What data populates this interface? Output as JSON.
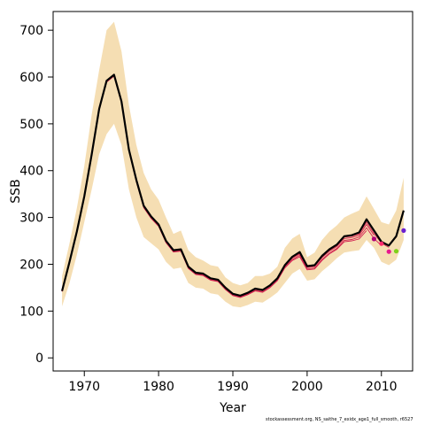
{
  "chart_data": {
    "type": "line",
    "title": "",
    "xlabel": "Year",
    "ylabel": "SSB",
    "xlim": [
      1965.8,
      2014.2
    ],
    "ylim": [
      -28,
      740
    ],
    "x_ticks": [
      1970,
      1980,
      1990,
      2000,
      2010
    ],
    "y_ticks": [
      0,
      100,
      200,
      300,
      400,
      500,
      600,
      700
    ],
    "grid": false,
    "footnote": "stockassessment.org, NS_saithe_7_exidx_age1_full_smooth, r6527",
    "colors": {
      "band": "#f5deb3",
      "main_line": "#000000",
      "retro_lines": "#d2224f",
      "retro_dark": "#5a1a1a"
    },
    "band": {
      "x": [
        1967,
        1968,
        1969,
        1970,
        1971,
        1972,
        1973,
        1974,
        1975,
        1976,
        1977,
        1978,
        1979,
        1980,
        1981,
        1982,
        1983,
        1984,
        1985,
        1986,
        1987,
        1988,
        1989,
        1990,
        1991,
        1992,
        1993,
        1994,
        1995,
        1996,
        1997,
        1998,
        1999,
        2000,
        2001,
        2002,
        2003,
        2004,
        2005,
        2006,
        2007,
        2008,
        2009,
        2010,
        2011,
        2012,
        2013
      ],
      "lower": [
        110,
        160,
        220,
        290,
        360,
        435,
        478,
        500,
        455,
        360,
        300,
        258,
        245,
        232,
        205,
        190,
        193,
        160,
        150,
        148,
        138,
        135,
        120,
        110,
        108,
        113,
        120,
        118,
        128,
        140,
        160,
        180,
        190,
        165,
        168,
        185,
        198,
        213,
        225,
        228,
        230,
        252,
        235,
        205,
        198,
        210,
        252
      ],
      "upper": [
        175,
        245,
        320,
        410,
        520,
        615,
        700,
        718,
        655,
        540,
        455,
        395,
        360,
        338,
        300,
        265,
        272,
        230,
        215,
        208,
        198,
        195,
        172,
        160,
        155,
        160,
        175,
        175,
        180,
        195,
        235,
        255,
        265,
        215,
        225,
        252,
        270,
        283,
        300,
        308,
        315,
        345,
        318,
        290,
        285,
        315,
        385
      ]
    },
    "series": [
      {
        "name": "",
        "role": "main",
        "x": [
          1967,
          1968,
          1969,
          1970,
          1971,
          1972,
          1973,
          1974,
          1975,
          1976,
          1977,
          1978,
          1979,
          1980,
          1981,
          1982,
          1983,
          1984,
          1985,
          1986,
          1987,
          1988,
          1989,
          1990,
          1991,
          1992,
          1993,
          1994,
          1995,
          1996,
          1997,
          1998,
          1999,
          2000,
          2001,
          2002,
          2003,
          2004,
          2005,
          2006,
          2007,
          2008,
          2009,
          2010,
          2011,
          2012,
          2013
        ],
        "values": [
          143,
          205,
          270,
          345,
          435,
          532,
          592,
          605,
          548,
          445,
          380,
          325,
          302,
          285,
          250,
          230,
          232,
          195,
          182,
          180,
          170,
          167,
          150,
          137,
          133,
          139,
          148,
          145,
          155,
          170,
          198,
          216,
          226,
          196,
          198,
          218,
          232,
          242,
          260,
          262,
          268,
          296,
          272,
          248,
          240,
          260,
          315
        ]
      },
      {
        "name": "",
        "role": "retro",
        "x": [
          1967,
          1968,
          1969,
          1970,
          1971,
          1972,
          1973,
          1974,
          1975,
          1976,
          1977,
          1978,
          1979,
          1980,
          1981,
          1982,
          1983,
          1984,
          1985,
          1986,
          1987,
          1988,
          1989,
          1990,
          1991,
          1992,
          1993,
          1994,
          1995,
          1996,
          1997,
          1998,
          1999,
          2000,
          2001,
          2002,
          2003,
          2004,
          2005,
          2006,
          2007,
          2008,
          2009
        ],
        "values": [
          142,
          204,
          268,
          343,
          433,
          530,
          590,
          603,
          546,
          443,
          378,
          323,
          300,
          283,
          248,
          228,
          230,
          193,
          180,
          178,
          168,
          165,
          148,
          135,
          131,
          137,
          146,
          143,
          153,
          168,
          196,
          213,
          222,
          193,
          195,
          214,
          228,
          238,
          255,
          257,
          262,
          285,
          262
        ],
        "end_point": 244,
        "end_color": "#ff2a6d"
      },
      {
        "name": "",
        "role": "retro",
        "x": [
          1967,
          1968,
          1969,
          1970,
          1971,
          1972,
          1973,
          1974,
          1975,
          1976,
          1977,
          1978,
          1979,
          1980,
          1981,
          1982,
          1983,
          1984,
          1985,
          1986,
          1987,
          1988,
          1989,
          1990,
          1991,
          1992,
          1993,
          1994,
          1995,
          1996,
          1997,
          1998,
          1999,
          2000,
          2001,
          2002,
          2003,
          2004,
          2005,
          2006,
          2007,
          2008
        ],
        "values": [
          142,
          204,
          268,
          343,
          432,
          529,
          589,
          602,
          545,
          442,
          376,
          321,
          298,
          281,
          246,
          226,
          228,
          191,
          178,
          176,
          166,
          163,
          146,
          133,
          129,
          135,
          143,
          140,
          150,
          165,
          192,
          208,
          216,
          188,
          190,
          208,
          222,
          232,
          248,
          250,
          254,
          272
        ],
        "end_point": 254,
        "end_color": "#b0007a"
      },
      {
        "name": "",
        "role": "retro",
        "x": [
          1967,
          1968,
          1969,
          1970,
          1971,
          1972,
          1973,
          1974,
          1975,
          1976,
          1977,
          1978,
          1979,
          1980,
          1981,
          1982,
          1983,
          1984,
          1985,
          1986,
          1987,
          1988,
          1989,
          1990,
          1991,
          1992,
          1993,
          1994,
          1995,
          1996,
          1997,
          1998,
          1999,
          2000,
          2001,
          2002,
          2003,
          2004,
          2005,
          2006,
          2007,
          2008,
          2009,
          2010
        ],
        "values": [
          142,
          204,
          268,
          343,
          433,
          530,
          590,
          603,
          546,
          443,
          377,
          322,
          299,
          282,
          247,
          227,
          229,
          192,
          179,
          177,
          167,
          164,
          147,
          134,
          130,
          136,
          144,
          141,
          151,
          166,
          194,
          210,
          219,
          190,
          192,
          210,
          224,
          234,
          251,
          253,
          258,
          278,
          255,
          240
        ],
        "end_point": 227,
        "end_color": "#e8188f"
      },
      {
        "name": "",
        "role": "retro",
        "x": [
          1967,
          1968,
          1969,
          1970,
          1971,
          1972,
          1973,
          1974,
          1975,
          1976,
          1977,
          1978,
          1979,
          1980,
          1981,
          1982,
          1983,
          1984,
          1985,
          1986,
          1987,
          1988,
          1989,
          1990,
          1991,
          1992,
          1993,
          1994,
          1995,
          1996,
          1997,
          1998,
          1999,
          2000,
          2001,
          2002,
          2003,
          2004,
          2005,
          2006,
          2007,
          2008,
          2009,
          2010,
          2011
        ],
        "values": [
          143,
          205,
          269,
          344,
          434,
          531,
          591,
          604,
          547,
          444,
          379,
          324,
          301,
          284,
          249,
          229,
          231,
          194,
          181,
          179,
          169,
          166,
          149,
          136,
          132,
          138,
          147,
          144,
          154,
          169,
          197,
          215,
          224,
          195,
          197,
          216,
          230,
          240,
          258,
          260,
          265,
          290,
          266,
          245,
          236
        ],
        "end_point": 228,
        "end_color": "#7fd11a"
      },
      {
        "name": "",
        "role": "retro",
        "x": [
          1967,
          1968,
          1969,
          1970,
          1971,
          1972,
          1973,
          1974,
          1975,
          1976,
          1977,
          1978,
          1979,
          1980,
          1981,
          1982,
          1983,
          1984,
          1985,
          1986,
          1987,
          1988,
          1989,
          1990,
          1991,
          1992,
          1993,
          1994,
          1995,
          1996,
          1997,
          1998,
          1999,
          2000,
          2001,
          2002,
          2003,
          2004,
          2005,
          2006,
          2007,
          2008,
          2009,
          2010,
          2011,
          2012
        ],
        "values": [
          143,
          205,
          270,
          345,
          435,
          532,
          592,
          605,
          548,
          445,
          380,
          325,
          302,
          285,
          250,
          230,
          232,
          195,
          182,
          180,
          170,
          167,
          150,
          137,
          133,
          139,
          148,
          145,
          155,
          170,
          198,
          216,
          226,
          196,
          198,
          218,
          232,
          242,
          260,
          262,
          268,
          296,
          272,
          248,
          240,
          258
        ],
        "end_point": 272,
        "end_color": "#6a1fd0"
      }
    ]
  }
}
